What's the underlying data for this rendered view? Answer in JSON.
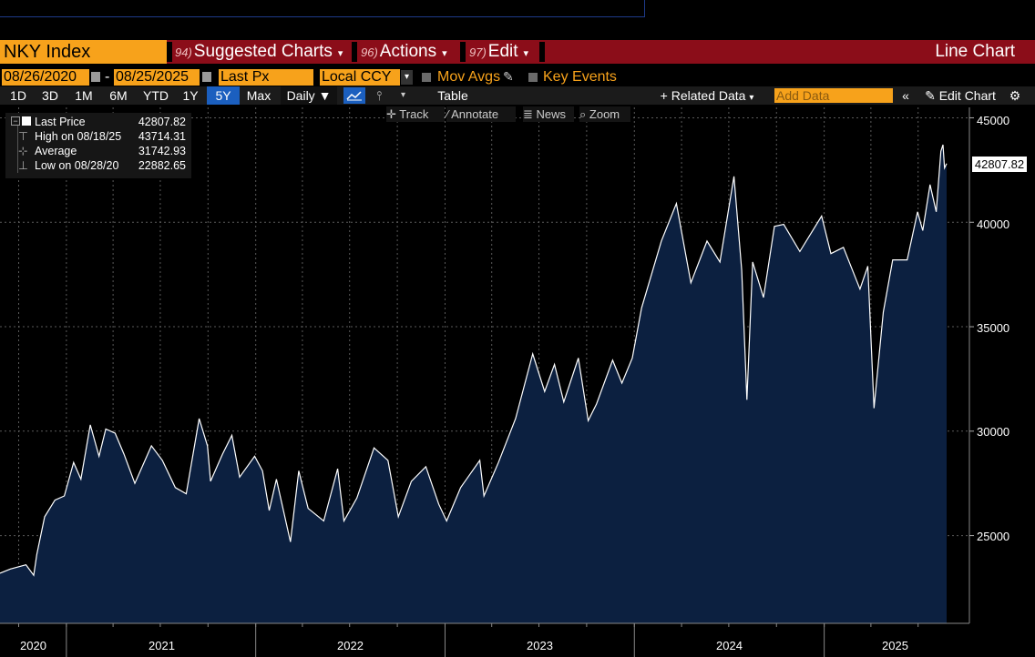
{
  "header": {
    "ticker": "NKY Index",
    "menus": [
      {
        "num": "94)",
        "label": "Suggested Charts"
      },
      {
        "num": "96)",
        "label": "Actions"
      },
      {
        "num": "97)",
        "label": "Edit"
      }
    ],
    "chart_type": "Line Chart"
  },
  "controls": {
    "start_date": "08/26/2020",
    "end_date": "08/25/2025",
    "date_sep": "-",
    "field": "Last Px",
    "currency": "Local CCY",
    "mov_avgs": "Mov Avgs",
    "key_events": "Key Events",
    "ranges": [
      "1D",
      "3D",
      "1M",
      "6M",
      "YTD",
      "1Y",
      "5Y",
      "Max"
    ],
    "selected_range": "5Y",
    "frequency": "Daily",
    "table": "Table",
    "related_data": "Related Data",
    "add_data_placeholder": "Add Data",
    "edit_chart": "Edit Chart"
  },
  "tools": {
    "track": "Track",
    "annotate": "Annotate",
    "news": "News",
    "zoom": "Zoom"
  },
  "legend": {
    "last_label": "Last Price",
    "last_value": "42807.82",
    "high_label": "High on 08/18/25",
    "high_value": "43714.31",
    "avg_label": "Average",
    "avg_value": "31742.93",
    "low_label": "Low on 08/28/20",
    "low_value": "22882.65"
  },
  "chart_data": {
    "type": "area",
    "series_name": "Last Price",
    "ylim": [
      20800,
      45500
    ],
    "yticks": [
      25000,
      30000,
      35000,
      40000,
      45000
    ],
    "xticks": [
      "2020",
      "2021",
      "2022",
      "2023",
      "2024",
      "2025"
    ],
    "last_value_label": "42807.82",
    "grid": true,
    "colors": {
      "line": "#ffffff",
      "fill": "#0c2040",
      "grid": "#5a5a5a"
    },
    "points": [
      [
        "2020-08-26",
        23200
      ],
      [
        "2020-09-15",
        23400
      ],
      [
        "2020-10-15",
        23600
      ],
      [
        "2020-10-30",
        23100
      ],
      [
        "2020-11-05",
        24100
      ],
      [
        "2020-11-20",
        25900
      ],
      [
        "2020-12-10",
        26700
      ],
      [
        "2020-12-28",
        26900
      ],
      [
        "2021-01-15",
        28500
      ],
      [
        "2021-01-29",
        27700
      ],
      [
        "2021-02-16",
        30300
      ],
      [
        "2021-03-05",
        28800
      ],
      [
        "2021-03-18",
        30100
      ],
      [
        "2021-04-05",
        29900
      ],
      [
        "2021-04-22",
        28900
      ],
      [
        "2021-05-13",
        27500
      ],
      [
        "2021-06-14",
        29300
      ],
      [
        "2021-07-05",
        28600
      ],
      [
        "2021-07-30",
        27300
      ],
      [
        "2021-08-20",
        27000
      ],
      [
        "2021-09-14",
        30600
      ],
      [
        "2021-09-30",
        29300
      ],
      [
        "2021-10-06",
        27600
      ],
      [
        "2021-10-29",
        28900
      ],
      [
        "2021-11-16",
        29800
      ],
      [
        "2021-12-01",
        27800
      ],
      [
        "2021-12-30",
        28800
      ],
      [
        "2022-01-14",
        28100
      ],
      [
        "2022-01-27",
        26200
      ],
      [
        "2022-02-10",
        27700
      ],
      [
        "2022-03-09",
        24700
      ],
      [
        "2022-03-25",
        28100
      ],
      [
        "2022-04-12",
        26300
      ],
      [
        "2022-05-12",
        25700
      ],
      [
        "2022-06-08",
        28200
      ],
      [
        "2022-06-20",
        25700
      ],
      [
        "2022-07-15",
        26800
      ],
      [
        "2022-08-17",
        29200
      ],
      [
        "2022-09-13",
        28600
      ],
      [
        "2022-10-03",
        25900
      ],
      [
        "2022-10-28",
        27600
      ],
      [
        "2022-11-25",
        28300
      ],
      [
        "2022-12-20",
        26500
      ],
      [
        "2023-01-04",
        25700
      ],
      [
        "2023-01-31",
        27300
      ],
      [
        "2023-03-09",
        28600
      ],
      [
        "2023-03-17",
        26900
      ],
      [
        "2023-04-14",
        28500
      ],
      [
        "2023-05-17",
        30600
      ],
      [
        "2023-06-19",
        33700
      ],
      [
        "2023-07-12",
        31900
      ],
      [
        "2023-07-31",
        33200
      ],
      [
        "2023-08-18",
        31400
      ],
      [
        "2023-09-15",
        33500
      ],
      [
        "2023-10-04",
        30500
      ],
      [
        "2023-10-20",
        31300
      ],
      [
        "2023-11-20",
        33400
      ],
      [
        "2023-12-08",
        32300
      ],
      [
        "2023-12-28",
        33500
      ],
      [
        "2024-01-15",
        35900
      ],
      [
        "2024-02-22",
        39100
      ],
      [
        "2024-03-22",
        40900
      ],
      [
        "2024-04-19",
        37100
      ],
      [
        "2024-05-20",
        39100
      ],
      [
        "2024-06-14",
        38100
      ],
      [
        "2024-07-11",
        42200
      ],
      [
        "2024-07-26",
        37700
      ],
      [
        "2024-08-05",
        31500
      ],
      [
        "2024-08-16",
        38100
      ],
      [
        "2024-09-06",
        36400
      ],
      [
        "2024-09-27",
        39800
      ],
      [
        "2024-10-15",
        39900
      ],
      [
        "2024-11-15",
        38600
      ],
      [
        "2024-12-27",
        40300
      ],
      [
        "2025-01-14",
        38500
      ],
      [
        "2025-02-07",
        38800
      ],
      [
        "2025-03-11",
        36800
      ],
      [
        "2025-03-26",
        37900
      ],
      [
        "2025-04-07",
        31100
      ],
      [
        "2025-04-25",
        35700
      ],
      [
        "2025-05-13",
        38200
      ],
      [
        "2025-06-10",
        38200
      ],
      [
        "2025-06-30",
        40500
      ],
      [
        "2025-07-10",
        39600
      ],
      [
        "2025-07-24",
        41800
      ],
      [
        "2025-08-05",
        40500
      ],
      [
        "2025-08-14",
        43400
      ],
      [
        "2025-08-18",
        43714
      ],
      [
        "2025-08-21",
        42600
      ],
      [
        "2025-08-25",
        42808
      ]
    ]
  }
}
